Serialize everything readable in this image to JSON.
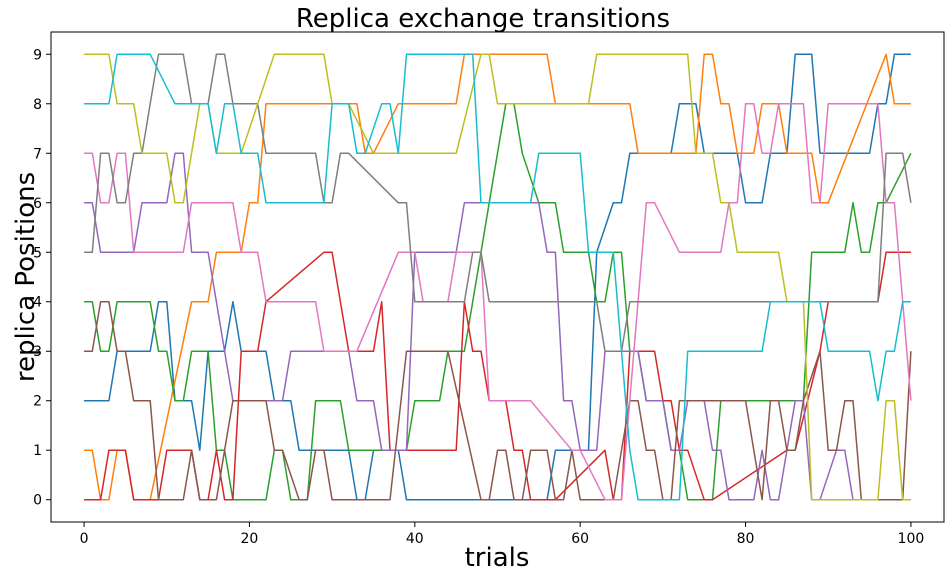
{
  "chart_data": {
    "type": "line",
    "title": "Replica exchange transitions",
    "xlabel": "trials",
    "ylabel": "replica Positions",
    "xlim": [
      -4,
      104
    ],
    "ylim": [
      -0.45,
      9.45
    ],
    "xticks": [
      0,
      20,
      40,
      60,
      80,
      100
    ],
    "yticks": [
      0,
      1,
      2,
      3,
      4,
      5,
      6,
      7,
      8,
      9
    ],
    "grid": false,
    "legend": "none",
    "series": [
      {
        "color": "#1f77b4",
        "x": [
          0,
          3,
          4,
          8,
          9,
          10,
          11,
          13,
          14,
          15,
          17,
          18,
          19,
          22,
          23,
          25,
          26,
          32,
          33,
          34,
          35,
          38,
          39,
          44,
          45,
          56,
          57,
          61,
          62,
          64,
          65,
          66,
          67,
          71,
          72,
          74,
          75,
          79,
          80,
          82,
          83,
          85,
          86,
          88,
          89,
          95,
          96,
          97,
          98,
          99,
          100
        ],
        "y": [
          2,
          2,
          3,
          3,
          4,
          4,
          2,
          2,
          1,
          3,
          3,
          4,
          3,
          3,
          2,
          2,
          1,
          1,
          0,
          0,
          1,
          1,
          0,
          0,
          0,
          0,
          1,
          1,
          5,
          6,
          6,
          7,
          7,
          7,
          8,
          8,
          7,
          7,
          6,
          6,
          7,
          7,
          9,
          9,
          7,
          7,
          8,
          8,
          9,
          9,
          9
        ]
      },
      {
        "color": "#ff7f0e",
        "x": [
          0,
          1,
          2,
          3,
          4,
          5,
          6,
          7,
          8,
          13,
          14,
          15,
          16,
          19,
          20,
          21,
          22,
          33,
          34,
          35,
          38,
          39,
          45,
          46,
          47,
          49,
          50,
          56,
          57,
          66,
          67,
          74,
          75,
          76,
          77,
          78,
          79,
          81,
          82,
          84,
          85,
          88,
          89,
          90,
          97,
          98,
          100
        ],
        "y": [
          1,
          1,
          0,
          0,
          1,
          1,
          0,
          0,
          0,
          4,
          4,
          4,
          5,
          5,
          6,
          6,
          8,
          8,
          7,
          7,
          8,
          8,
          8,
          9,
          9,
          9,
          9,
          9,
          8,
          8,
          7,
          7,
          9,
          9,
          8,
          8,
          7,
          7,
          8,
          8,
          7,
          7,
          6,
          6,
          9,
          8,
          8
        ]
      },
      {
        "color": "#2ca02c",
        "x": [
          0,
          1,
          2,
          3,
          4,
          8,
          9,
          10,
          11,
          12,
          13,
          15,
          16,
          17,
          18,
          22,
          23,
          24,
          25,
          27,
          28,
          31,
          32,
          39,
          40,
          43,
          44,
          46,
          47,
          48,
          49,
          50,
          51,
          52,
          53,
          55,
          56,
          57,
          58,
          61,
          62,
          63,
          64,
          65,
          66,
          67,
          68,
          70,
          71,
          72,
          73,
          76,
          77,
          87,
          88,
          91,
          92,
          93,
          94,
          95,
          96,
          97,
          100
        ],
        "y": [
          4,
          4,
          3,
          3,
          4,
          4,
          3,
          3,
          2,
          2,
          3,
          3,
          1,
          1,
          0,
          0,
          1,
          1,
          0,
          0,
          2,
          2,
          1,
          1,
          2,
          2,
          3,
          3,
          4,
          5,
          6,
          7,
          8,
          8,
          7,
          6,
          6,
          6,
          5,
          5,
          4,
          4,
          5,
          5,
          3,
          3,
          2,
          2,
          1,
          1,
          0,
          0,
          2,
          2,
          5,
          5,
          5,
          6,
          5,
          5,
          6,
          6,
          7
        ]
      },
      {
        "color": "#d62728",
        "x": [
          0,
          1,
          2,
          3,
          5,
          6,
          7,
          9,
          10,
          13,
          14,
          15,
          16,
          17,
          18,
          19,
          21,
          22,
          29,
          30,
          32,
          33,
          35,
          36,
          37,
          44,
          45,
          46,
          47,
          48,
          49,
          51,
          52,
          53,
          54,
          56,
          57,
          63,
          64,
          65,
          66,
          69,
          70,
          71,
          72,
          73,
          75,
          76,
          85,
          86,
          89,
          90,
          91,
          92,
          93,
          95,
          96,
          97,
          100
        ],
        "y": [
          0,
          0,
          0,
          1,
          1,
          0,
          0,
          0,
          1,
          1,
          0,
          0,
          1,
          0,
          0,
          3,
          3,
          4,
          5,
          5,
          3,
          3,
          3,
          4,
          1,
          1,
          1,
          4,
          3,
          3,
          2,
          2,
          1,
          1,
          0,
          0,
          0,
          1,
          0,
          0,
          3,
          3,
          2,
          2,
          1,
          1,
          0,
          0,
          1,
          1,
          3,
          4,
          4,
          4,
          4,
          4,
          4,
          5,
          5
        ]
      },
      {
        "color": "#9467bd",
        "x": [
          0,
          1,
          2,
          6,
          7,
          10,
          11,
          12,
          13,
          14,
          15,
          16,
          17,
          18,
          24,
          25,
          32,
          33,
          35,
          36,
          39,
          40,
          45,
          46,
          55,
          56,
          57,
          58,
          59,
          60,
          61,
          62,
          63,
          67,
          68,
          69,
          70,
          71,
          72,
          73,
          75,
          76,
          77,
          78,
          80,
          81,
          82,
          83,
          84,
          86,
          87,
          88,
          89,
          91,
          92,
          93,
          94,
          95,
          96,
          97,
          98,
          100
        ],
        "y": [
          6,
          6,
          5,
          5,
          6,
          6,
          7,
          7,
          5,
          5,
          5,
          4,
          3,
          2,
          2,
          3,
          3,
          2,
          2,
          1,
          1,
          5,
          5,
          6,
          6,
          5,
          5,
          2,
          2,
          1,
          1,
          1,
          3,
          3,
          2,
          2,
          2,
          1,
          1,
          2,
          2,
          1,
          1,
          0,
          0,
          0,
          1,
          0,
          0,
          2,
          2,
          0,
          0,
          1,
          1,
          0,
          0,
          0,
          0,
          0,
          0,
          0
        ]
      },
      {
        "color": "#8c564b",
        "x": [
          0,
          1,
          2,
          3,
          4,
          5,
          6,
          7,
          8,
          9,
          11,
          12,
          13,
          14,
          16,
          17,
          18,
          22,
          23,
          24,
          26,
          27,
          28,
          29,
          30,
          31,
          32,
          33,
          34,
          35,
          36,
          37,
          39,
          40,
          41,
          42,
          43,
          44,
          48,
          49,
          50,
          51,
          52,
          53,
          54,
          56,
          57,
          58,
          59,
          60,
          61,
          63,
          64,
          65,
          66,
          67,
          68,
          69,
          70,
          71,
          72,
          73,
          74,
          80,
          81,
          82,
          83,
          84,
          85,
          86,
          87,
          89,
          90,
          91,
          92,
          93,
          94,
          95,
          98,
          99,
          100
        ],
        "y": [
          3,
          3,
          4,
          4,
          3,
          3,
          2,
          2,
          2,
          0,
          0,
          0,
          1,
          0,
          0,
          1,
          2,
          2,
          1,
          1,
          0,
          0,
          1,
          1,
          0,
          0,
          0,
          0,
          0,
          0,
          0,
          0,
          3,
          3,
          3,
          3,
          3,
          3,
          0,
          0,
          1,
          1,
          0,
          0,
          1,
          1,
          0,
          0,
          1,
          0,
          0,
          0,
          0,
          1,
          2,
          2,
          1,
          1,
          0,
          0,
          2,
          2,
          2,
          2,
          1,
          0,
          2,
          2,
          1,
          1,
          2,
          3,
          1,
          1,
          2,
          2,
          0,
          0,
          0,
          0,
          3
        ]
      },
      {
        "color": "#e377c2",
        "x": [
          0,
          1,
          2,
          3,
          4,
          5,
          6,
          7,
          8,
          12,
          13,
          18,
          19,
          20,
          21,
          22,
          23,
          24,
          28,
          29,
          30,
          31,
          32,
          33,
          38,
          39,
          40,
          41,
          44,
          45,
          46,
          48,
          49,
          53,
          54,
          59,
          60,
          63,
          64,
          65,
          68,
          69,
          72,
          73,
          77,
          78,
          79,
          80,
          81,
          82,
          83,
          84,
          85,
          86,
          87,
          88,
          89,
          90,
          91,
          92,
          95,
          96,
          97,
          98,
          99,
          100
        ],
        "y": [
          7,
          7,
          6,
          6,
          7,
          7,
          5,
          5,
          5,
          5,
          6,
          6,
          5,
          5,
          5,
          4,
          4,
          4,
          4,
          3,
          3,
          3,
          3,
          3,
          5,
          5,
          5,
          4,
          4,
          5,
          5,
          5,
          2,
          2,
          2,
          1,
          1,
          0,
          0,
          0,
          6,
          6,
          5,
          5,
          5,
          6,
          6,
          8,
          8,
          7,
          7,
          8,
          8,
          8,
          8,
          6,
          6,
          8,
          8,
          8,
          8,
          8,
          6,
          6,
          4,
          2
        ]
      },
      {
        "color": "#7f7f7f",
        "x": [
          0,
          1,
          2,
          3,
          4,
          5,
          6,
          7,
          8,
          9,
          12,
          13,
          15,
          16,
          17,
          18,
          19,
          21,
          22,
          28,
          29,
          30,
          31,
          32,
          38,
          39,
          40,
          41,
          46,
          47,
          48,
          49,
          50,
          51,
          52,
          53,
          54,
          55,
          56,
          57,
          58,
          59,
          60,
          61,
          62,
          63,
          64,
          65,
          66,
          67,
          68,
          69,
          70,
          71,
          72,
          73,
          75,
          76,
          77,
          78,
          80,
          81,
          82,
          83,
          84,
          85,
          86,
          88,
          89,
          90,
          91,
          92,
          93,
          94,
          95,
          96,
          97,
          98,
          99,
          100
        ],
        "y": [
          5,
          5,
          7,
          7,
          6,
          6,
          7,
          7,
          8,
          9,
          9,
          8,
          8,
          9,
          9,
          8,
          8,
          8,
          7,
          7,
          6,
          6,
          7,
          7,
          6,
          6,
          4,
          4,
          4,
          5,
          5,
          4,
          4,
          4,
          4,
          4,
          4,
          4,
          4,
          4,
          4,
          4,
          4,
          4,
          4,
          3,
          3,
          3,
          4,
          4,
          4,
          4,
          4,
          4,
          4,
          4,
          4,
          4,
          4,
          4,
          4,
          4,
          4,
          4,
          4,
          4,
          4,
          4,
          4,
          4,
          4,
          4,
          4,
          4,
          4,
          4,
          7,
          7,
          7,
          6
        ]
      },
      {
        "color": "#bcbf22",
        "x": [
          0,
          1,
          2,
          3,
          4,
          5,
          6,
          7,
          8,
          9,
          10,
          11,
          12,
          14,
          15,
          16,
          17,
          18,
          19,
          23,
          24,
          29,
          30,
          31,
          32,
          35,
          36,
          37,
          38,
          39,
          40,
          41,
          42,
          44,
          45,
          48,
          49,
          50,
          51,
          52,
          53,
          54,
          55,
          56,
          57,
          58,
          59,
          60,
          61,
          62,
          63,
          64,
          65,
          66,
          67,
          68,
          69,
          70,
          71,
          72,
          73,
          74,
          75,
          76,
          77,
          78,
          79,
          80,
          81,
          82,
          83,
          84,
          85,
          86,
          87,
          88,
          89,
          90,
          91,
          92,
          93,
          94,
          95,
          96,
          97,
          98,
          99,
          100
        ],
        "y": [
          9,
          9,
          9,
          9,
          8,
          8,
          8,
          7,
          7,
          7,
          7,
          6,
          6,
          8,
          8,
          7,
          7,
          7,
          7,
          9,
          9,
          9,
          8,
          8,
          8,
          7,
          7,
          7,
          7,
          7,
          7,
          7,
          7,
          7,
          7,
          9,
          9,
          8,
          8,
          8,
          8,
          8,
          8,
          8,
          8,
          8,
          8,
          8,
          8,
          9,
          9,
          9,
          9,
          9,
          9,
          9,
          9,
          9,
          9,
          9,
          9,
          7,
          7,
          7,
          6,
          6,
          5,
          5,
          5,
          5,
          5,
          5,
          4,
          4,
          4,
          0,
          0,
          0,
          0,
          0,
          0,
          0,
          0,
          0,
          2,
          2,
          0,
          0
        ]
      },
      {
        "color": "#17becf",
        "x": [
          0,
          3,
          4,
          7,
          8,
          11,
          12,
          14,
          15,
          16,
          17,
          18,
          19,
          20,
          21,
          22,
          28,
          29,
          30,
          32,
          33,
          34,
          36,
          37,
          38,
          39,
          46,
          47,
          48,
          49,
          50,
          54,
          55,
          60,
          61,
          62,
          63,
          64,
          65,
          66,
          67,
          72,
          73,
          82,
          83,
          88,
          89,
          90,
          91,
          95,
          96,
          97,
          98,
          99,
          100
        ],
        "y": [
          8,
          8,
          9,
          9,
          9,
          8,
          8,
          8,
          8,
          7,
          8,
          8,
          7,
          7,
          7,
          6,
          6,
          6,
          8,
          8,
          7,
          7,
          8,
          8,
          7,
          9,
          9,
          9,
          6,
          6,
          6,
          6,
          7,
          7,
          5,
          5,
          5,
          5,
          3,
          1,
          0,
          0,
          3,
          3,
          4,
          4,
          4,
          3,
          3,
          3,
          2,
          3,
          3,
          4,
          4
        ]
      }
    ]
  }
}
